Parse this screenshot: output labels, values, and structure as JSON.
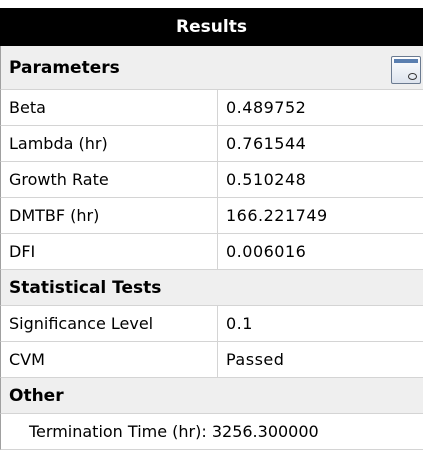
{
  "header": {
    "title": "Results"
  },
  "sections": [
    {
      "title": "Parameters",
      "rows": [
        [
          "Beta",
          "0.489752"
        ],
        [
          "Lambda (hr)",
          "0.761544"
        ],
        [
          "Growth Rate",
          "0.510248"
        ],
        [
          "DMTBF (hr)",
          "166.221749"
        ],
        [
          "DFI",
          "0.006016"
        ]
      ]
    },
    {
      "title": "Statistical Tests",
      "rows": [
        [
          "Significance Level",
          "0.1"
        ],
        [
          "CVM",
          "Passed"
        ]
      ]
    },
    {
      "title": "Other",
      "rows": [
        [
          "Termination Time (hr): 3256.300000"
        ]
      ]
    }
  ]
}
